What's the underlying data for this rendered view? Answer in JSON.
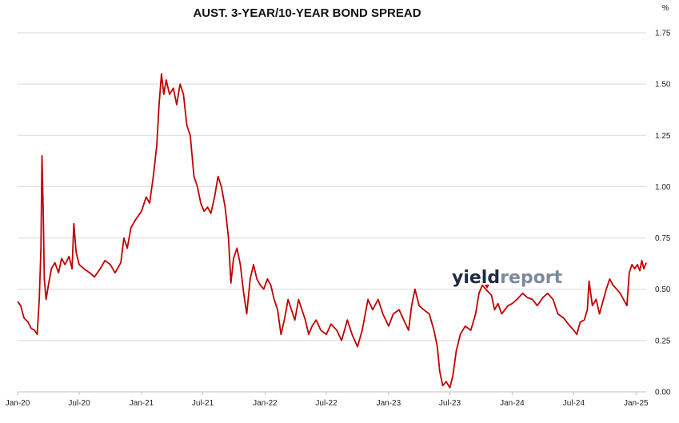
{
  "chart_data": {
    "type": "line",
    "title": "AUST. 3-YEAR/10-YEAR BOND SPREAD",
    "unit": "%",
    "xlabel": "",
    "ylabel": "",
    "x_ticks": [
      "Jan-20",
      "Jul-20",
      "Jan-21",
      "Jul-21",
      "Jan-22",
      "Jul-22",
      "Jan-23",
      "Jul-23",
      "Jan-24",
      "Jul-24",
      "Jan-25"
    ],
    "y_ticks": [
      "0.00",
      "0.25",
      "0.50",
      "0.75",
      "1.00",
      "1.25",
      "1.50",
      "1.75"
    ],
    "ylim": [
      0,
      1.75
    ],
    "xlim": [
      "2020-01-01",
      "2025-01-31"
    ],
    "grid": true,
    "y_axis_position": "right",
    "legend": "none",
    "watermark": "yieldreport",
    "colors": {
      "line": "#c00000",
      "grid": "#d9d9d9",
      "axis": "#bfbfbf"
    },
    "series": [
      {
        "values": [
          [
            "2020-01-01",
            0.44
          ],
          [
            "2020-01-10",
            0.42
          ],
          [
            "2020-01-20",
            0.36
          ],
          [
            "2020-02-01",
            0.34
          ],
          [
            "2020-02-10",
            0.31
          ],
          [
            "2020-02-20",
            0.3
          ],
          [
            "2020-02-28",
            0.28
          ],
          [
            "2020-03-05",
            0.45
          ],
          [
            "2020-03-10",
            0.7
          ],
          [
            "2020-03-13",
            1.15
          ],
          [
            "2020-03-17",
            0.85
          ],
          [
            "2020-03-20",
            0.55
          ],
          [
            "2020-03-25",
            0.45
          ],
          [
            "2020-04-01",
            0.52
          ],
          [
            "2020-04-10",
            0.6
          ],
          [
            "2020-04-20",
            0.63
          ],
          [
            "2020-05-01",
            0.58
          ],
          [
            "2020-05-10",
            0.65
          ],
          [
            "2020-05-20",
            0.62
          ],
          [
            "2020-06-01",
            0.66
          ],
          [
            "2020-06-10",
            0.6
          ],
          [
            "2020-06-15",
            0.82
          ],
          [
            "2020-06-22",
            0.68
          ],
          [
            "2020-07-01",
            0.62
          ],
          [
            "2020-07-15",
            0.6
          ],
          [
            "2020-08-01",
            0.58
          ],
          [
            "2020-08-15",
            0.56
          ],
          [
            "2020-09-01",
            0.6
          ],
          [
            "2020-09-15",
            0.64
          ],
          [
            "2020-10-01",
            0.62
          ],
          [
            "2020-10-15",
            0.58
          ],
          [
            "2020-11-01",
            0.63
          ],
          [
            "2020-11-10",
            0.75
          ],
          [
            "2020-11-20",
            0.7
          ],
          [
            "2020-12-01",
            0.8
          ],
          [
            "2020-12-15",
            0.84
          ],
          [
            "2021-01-01",
            0.88
          ],
          [
            "2021-01-15",
            0.95
          ],
          [
            "2021-01-25",
            0.92
          ],
          [
            "2021-02-05",
            1.05
          ],
          [
            "2021-02-15",
            1.2
          ],
          [
            "2021-02-22",
            1.4
          ],
          [
            "2021-03-01",
            1.55
          ],
          [
            "2021-03-08",
            1.45
          ],
          [
            "2021-03-15",
            1.52
          ],
          [
            "2021-03-25",
            1.45
          ],
          [
            "2021-04-05",
            1.48
          ],
          [
            "2021-04-15",
            1.4
          ],
          [
            "2021-04-25",
            1.5
          ],
          [
            "2021-05-05",
            1.45
          ],
          [
            "2021-05-15",
            1.3
          ],
          [
            "2021-05-25",
            1.25
          ],
          [
            "2021-06-05",
            1.05
          ],
          [
            "2021-06-15",
            1.0
          ],
          [
            "2021-06-25",
            0.92
          ],
          [
            "2021-07-05",
            0.88
          ],
          [
            "2021-07-15",
            0.9
          ],
          [
            "2021-07-25",
            0.87
          ],
          [
            "2021-08-05",
            0.95
          ],
          [
            "2021-08-15",
            1.05
          ],
          [
            "2021-08-25",
            1.0
          ],
          [
            "2021-09-05",
            0.9
          ],
          [
            "2021-09-15",
            0.75
          ],
          [
            "2021-09-22",
            0.53
          ],
          [
            "2021-09-30",
            0.65
          ],
          [
            "2021-10-10",
            0.7
          ],
          [
            "2021-10-20",
            0.62
          ],
          [
            "2021-10-30",
            0.48
          ],
          [
            "2021-11-08",
            0.38
          ],
          [
            "2021-11-18",
            0.55
          ],
          [
            "2021-11-28",
            0.62
          ],
          [
            "2021-12-08",
            0.55
          ],
          [
            "2021-12-18",
            0.52
          ],
          [
            "2021-12-28",
            0.5
          ],
          [
            "2022-01-08",
            0.55
          ],
          [
            "2022-01-18",
            0.52
          ],
          [
            "2022-01-28",
            0.45
          ],
          [
            "2022-02-07",
            0.4
          ],
          [
            "2022-02-17",
            0.28
          ],
          [
            "2022-02-27",
            0.35
          ],
          [
            "2022-03-10",
            0.45
          ],
          [
            "2022-03-20",
            0.4
          ],
          [
            "2022-03-30",
            0.35
          ],
          [
            "2022-04-10",
            0.45
          ],
          [
            "2022-04-20",
            0.4
          ],
          [
            "2022-04-30",
            0.35
          ],
          [
            "2022-05-10",
            0.28
          ],
          [
            "2022-05-20",
            0.32
          ],
          [
            "2022-06-01",
            0.35
          ],
          [
            "2022-06-15",
            0.3
          ],
          [
            "2022-07-01",
            0.28
          ],
          [
            "2022-07-15",
            0.33
          ],
          [
            "2022-08-01",
            0.3
          ],
          [
            "2022-08-15",
            0.25
          ],
          [
            "2022-09-01",
            0.35
          ],
          [
            "2022-09-15",
            0.28
          ],
          [
            "2022-10-01",
            0.22
          ],
          [
            "2022-10-15",
            0.3
          ],
          [
            "2022-11-01",
            0.45
          ],
          [
            "2022-11-15",
            0.4
          ],
          [
            "2022-12-01",
            0.45
          ],
          [
            "2022-12-15",
            0.38
          ],
          [
            "2023-01-01",
            0.32
          ],
          [
            "2023-01-15",
            0.38
          ],
          [
            "2023-02-01",
            0.4
          ],
          [
            "2023-02-15",
            0.35
          ],
          [
            "2023-03-01",
            0.3
          ],
          [
            "2023-03-10",
            0.42
          ],
          [
            "2023-03-20",
            0.5
          ],
          [
            "2023-04-01",
            0.42
          ],
          [
            "2023-04-15",
            0.4
          ],
          [
            "2023-05-01",
            0.38
          ],
          [
            "2023-05-15",
            0.3
          ],
          [
            "2023-05-25",
            0.22
          ],
          [
            "2023-06-01",
            0.1
          ],
          [
            "2023-06-10",
            0.03
          ],
          [
            "2023-06-20",
            0.05
          ],
          [
            "2023-07-01",
            0.02
          ],
          [
            "2023-07-10",
            0.08
          ],
          [
            "2023-07-20",
            0.2
          ],
          [
            "2023-08-01",
            0.28
          ],
          [
            "2023-08-15",
            0.32
          ],
          [
            "2023-09-01",
            0.3
          ],
          [
            "2023-09-15",
            0.38
          ],
          [
            "2023-09-25",
            0.48
          ],
          [
            "2023-10-05",
            0.52
          ],
          [
            "2023-10-15",
            0.5
          ],
          [
            "2023-11-01",
            0.47
          ],
          [
            "2023-11-10",
            0.4
          ],
          [
            "2023-11-20",
            0.43
          ],
          [
            "2023-12-01",
            0.38
          ],
          [
            "2023-12-10",
            0.4
          ],
          [
            "2023-12-20",
            0.42
          ],
          [
            "2024-01-01",
            0.43
          ],
          [
            "2024-01-15",
            0.45
          ],
          [
            "2024-02-01",
            0.48
          ],
          [
            "2024-02-15",
            0.46
          ],
          [
            "2024-03-01",
            0.45
          ],
          [
            "2024-03-15",
            0.42
          ],
          [
            "2024-04-01",
            0.46
          ],
          [
            "2024-04-15",
            0.48
          ],
          [
            "2024-05-01",
            0.45
          ],
          [
            "2024-05-15",
            0.38
          ],
          [
            "2024-06-01",
            0.36
          ],
          [
            "2024-06-15",
            0.33
          ],
          [
            "2024-07-01",
            0.3
          ],
          [
            "2024-07-10",
            0.28
          ],
          [
            "2024-07-20",
            0.34
          ],
          [
            "2024-08-01",
            0.35
          ],
          [
            "2024-08-10",
            0.4
          ],
          [
            "2024-08-15",
            0.54
          ],
          [
            "2024-08-25",
            0.42
          ],
          [
            "2024-09-05",
            0.45
          ],
          [
            "2024-09-15",
            0.38
          ],
          [
            "2024-09-25",
            0.44
          ],
          [
            "2024-10-05",
            0.5
          ],
          [
            "2024-10-15",
            0.55
          ],
          [
            "2024-10-25",
            0.52
          ],
          [
            "2024-11-05",
            0.5
          ],
          [
            "2024-11-15",
            0.48
          ],
          [
            "2024-11-25",
            0.45
          ],
          [
            "2024-12-05",
            0.42
          ],
          [
            "2024-12-12",
            0.58
          ],
          [
            "2024-12-20",
            0.62
          ],
          [
            "2024-12-28",
            0.6
          ],
          [
            "2025-01-05",
            0.62
          ],
          [
            "2025-01-12",
            0.59
          ],
          [
            "2025-01-18",
            0.64
          ],
          [
            "2025-01-24",
            0.6
          ],
          [
            "2025-01-31",
            0.63
          ]
        ]
      }
    ]
  }
}
